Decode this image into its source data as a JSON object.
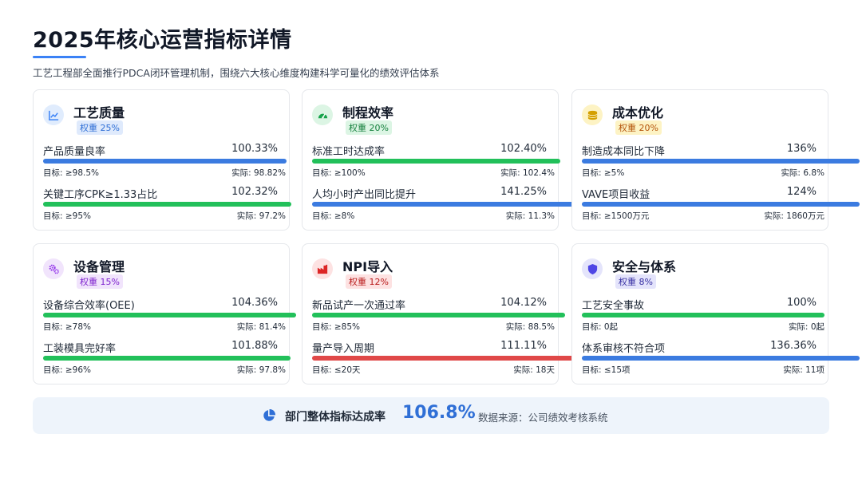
{
  "header": {
    "title": "2025年核心运营指标详情",
    "subtitle": "工艺工程部全面推行PDCA闭环管理机制，围绕六大核心维度构建科学可量化的绩效评估体系",
    "accent": "#3b82f6"
  },
  "cards": [
    {
      "title": "工艺质量",
      "weight": "权重 25%",
      "icon": "line-chart-icon",
      "icon_color": "#3b82f6",
      "icon_bg": "#e0ecfd",
      "weight_color": "#2f6fd6",
      "weight_bg": "#dfeafc",
      "metrics": [
        {
          "name": "产品质量良率",
          "pct": "100.33%",
          "progress": 100.33,
          "bar_color": "#3b7be0",
          "target": "目标: ≥98.5%",
          "actual": "实际: 98.82%"
        },
        {
          "name": "关键工序CPK≥1.33占比",
          "pct": "102.32%",
          "progress": 102.32,
          "bar_color": "#22c05a",
          "target": "目标: ≥95%",
          "actual": "实际: 97.2%"
        }
      ]
    },
    {
      "title": "制程效率",
      "weight": "权重 20%",
      "icon": "gauge-icon",
      "icon_color": "#16a34a",
      "icon_bg": "#dcf5e4",
      "weight_color": "#15803d",
      "weight_bg": "#dcf5e4",
      "metrics": [
        {
          "name": "标准工时达成率",
          "pct": "102.40%",
          "progress": 102.4,
          "bar_color": "#22c05a",
          "target": "目标: ≥100%",
          "actual": "实际: 102.4%"
        },
        {
          "name": "人均小时产出同比提升",
          "pct": "141.25%",
          "progress": 141.25,
          "bar_color": "#3b7be0",
          "target": "目标: ≥8%",
          "actual": "实际: 11.3%"
        }
      ]
    },
    {
      "title": "成本优化",
      "weight": "权重 20%",
      "icon": "coins-icon",
      "icon_color": "#d4a000",
      "icon_bg": "#fdf3c4",
      "weight_color": "#b45309",
      "weight_bg": "#fdf3c4",
      "metrics": [
        {
          "name": "制造成本同比下降",
          "pct": "136%",
          "progress": 136,
          "bar_color": "#3b7be0",
          "target": "目标: ≥5%",
          "actual": "实际: 6.8%"
        },
        {
          "name": "VAVE项目收益",
          "pct": "124%",
          "progress": 124,
          "bar_color": "#3b7be0",
          "target": "目标: ≥1500万元",
          "actual": "实际: 1860万元"
        }
      ]
    },
    {
      "title": "设备管理",
      "weight": "权重 15%",
      "icon": "cogs-icon",
      "icon_color": "#9333ea",
      "icon_bg": "#f1e4fc",
      "weight_color": "#7e22ce",
      "weight_bg": "#f1e4fc",
      "metrics": [
        {
          "name": "设备综合效率(OEE)",
          "pct": "104.36%",
          "progress": 104.36,
          "bar_color": "#22c05a",
          "target": "目标: ≥78%",
          "actual": "实际: 81.4%"
        },
        {
          "name": "工装模具完好率",
          "pct": "101.88%",
          "progress": 101.88,
          "bar_color": "#22c05a",
          "target": "目标: ≥96%",
          "actual": "实际: 97.8%"
        }
      ]
    },
    {
      "title": "NPI导入",
      "weight": "权重 12%",
      "icon": "factory-icon",
      "icon_color": "#dc2626",
      "icon_bg": "#fde2e2",
      "weight_color": "#b91c1c",
      "weight_bg": "#fde2e2",
      "metrics": [
        {
          "name": "新品试产一次通过率",
          "pct": "104.12%",
          "progress": 104.12,
          "bar_color": "#22c05a",
          "target": "目标: ≥85%",
          "actual": "实际: 88.5%"
        },
        {
          "name": "量产导入周期",
          "pct": "111.11%",
          "progress": 111.11,
          "bar_color": "#e04848",
          "target": "目标: ≤20天",
          "actual": "实际: 18天"
        }
      ]
    },
    {
      "title": "安全与体系",
      "weight": "权重 8%",
      "icon": "shield-icon",
      "icon_color": "#4f46e5",
      "icon_bg": "#e4e4fb",
      "weight_color": "#3730a3",
      "weight_bg": "#e4e4fb",
      "metrics": [
        {
          "name": "工艺安全事故",
          "pct": "100%",
          "progress": 100,
          "bar_color": "#22c05a",
          "target": "目标: 0起",
          "actual": "实际: 0起"
        },
        {
          "name": "体系审核不符合项",
          "pct": "136.36%",
          "progress": 136.36,
          "bar_color": "#3b7be0",
          "target": "目标: ≤15项",
          "actual": "实际: 11项"
        }
      ]
    }
  ],
  "footer": {
    "icon": "pie-chart-icon",
    "label": "部门整体指标达成率",
    "value": "106.8%",
    "source": "数据来源：公司绩效考核系统"
  }
}
